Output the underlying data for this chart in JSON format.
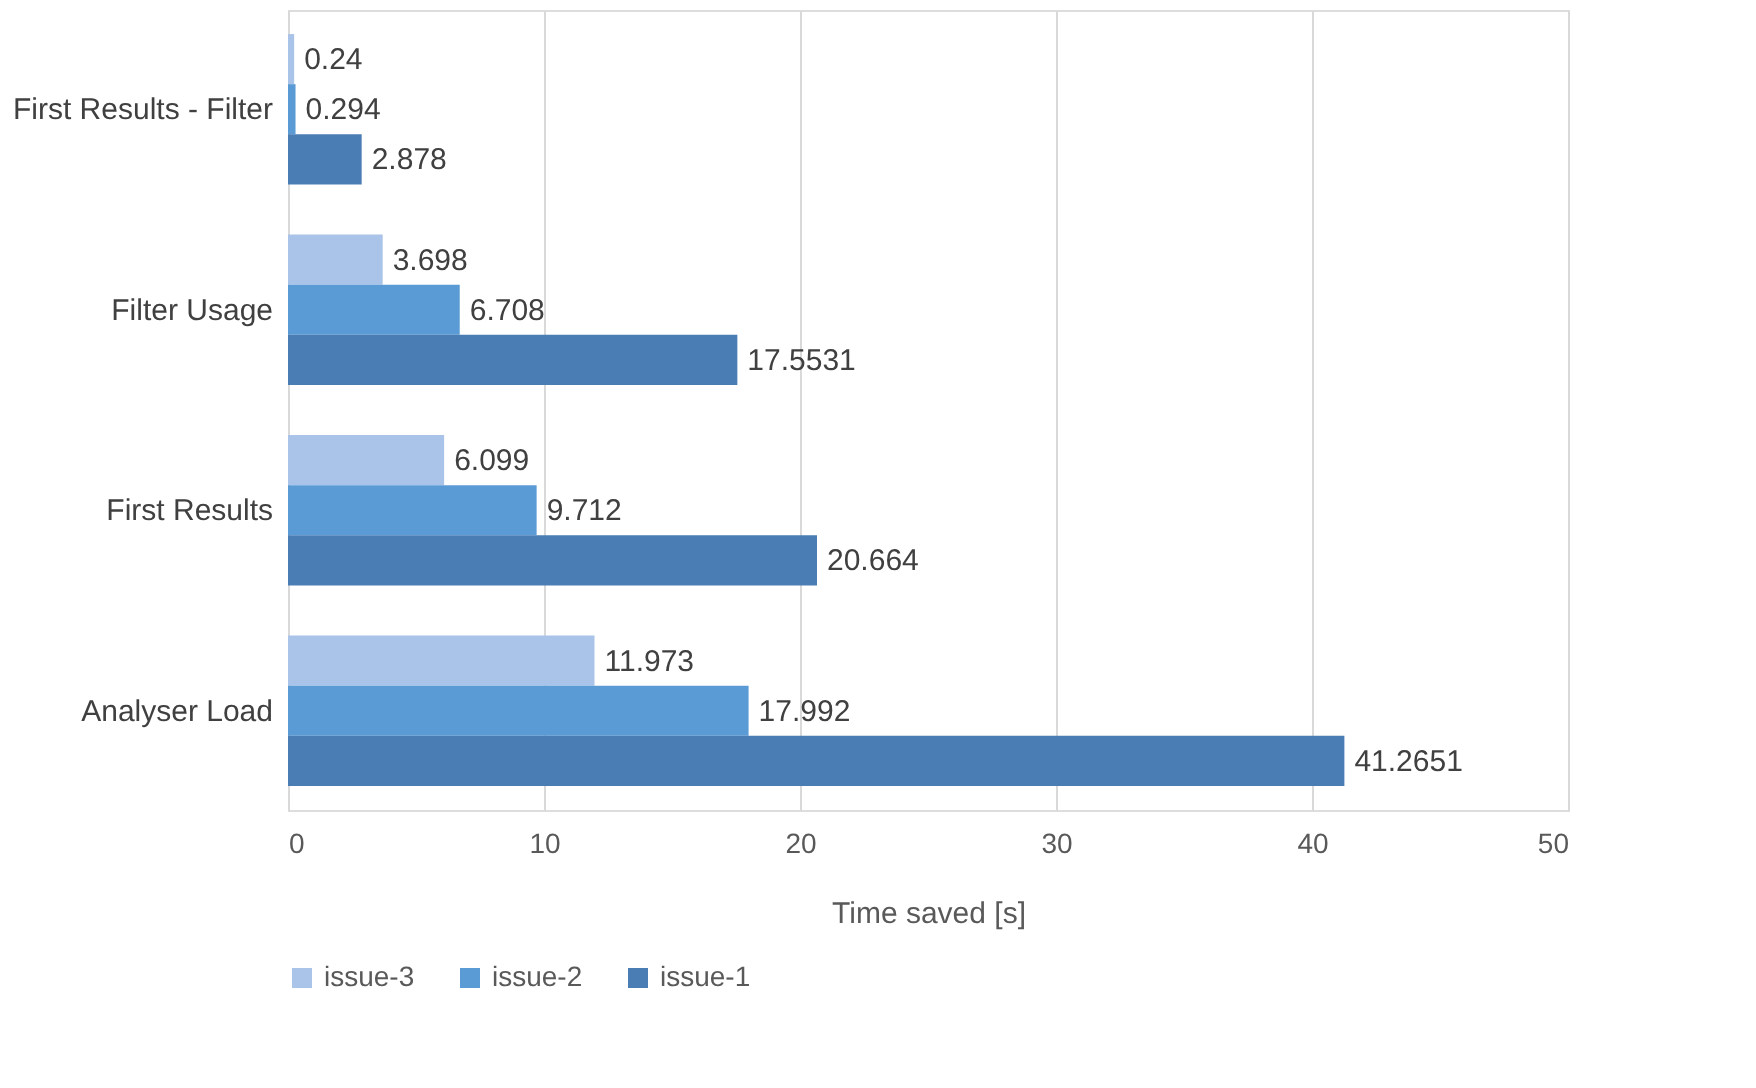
{
  "chart_data": {
    "type": "bar",
    "orientation": "horizontal",
    "xlabel": "Time saved [s]",
    "categories": [
      "First Results - Filter",
      "Filter Usage",
      "First Results",
      "Analyser Load"
    ],
    "series": [
      {
        "name": "issue-3",
        "color": "#a9c4e8",
        "values": [
          0.24,
          3.698,
          6.099,
          11.973
        ]
      },
      {
        "name": "issue-2",
        "color": "#5b9bd5",
        "values": [
          0.294,
          6.708,
          9.712,
          17.992
        ]
      },
      {
        "name": "issue-1",
        "color": "#4a7db4",
        "values": [
          2.878,
          17.5531,
          20.664,
          41.2651
        ]
      }
    ],
    "xlim": [
      0,
      50
    ],
    "xticks": [
      0,
      10,
      20,
      30,
      40,
      50
    ],
    "grid": "x",
    "legend": "bottom",
    "data_labels": true
  }
}
